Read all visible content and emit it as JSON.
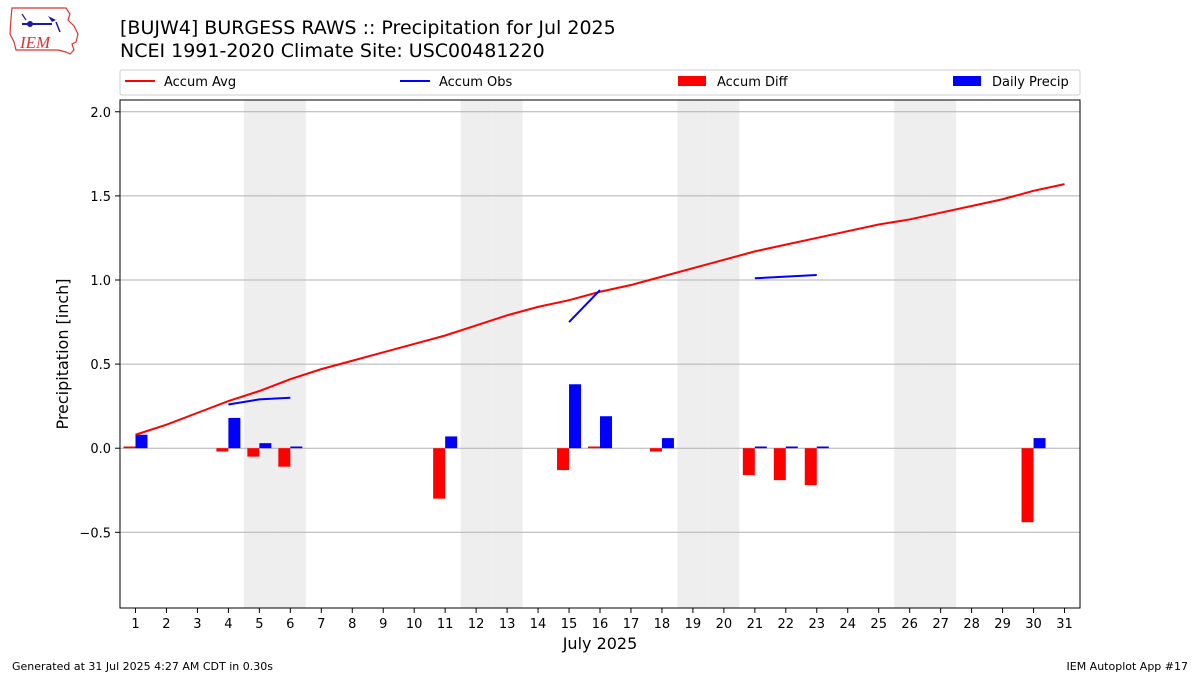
{
  "header": {
    "title_line1": "[BUJW4] BURGESS RAWS :: Precipitation for Jul 2025",
    "title_line2": "NCEI 1991-2020 Climate Site: USC00481220"
  },
  "logo": {
    "text": "IEM",
    "icon": "iowa-state-outline-logo"
  },
  "footer": {
    "left": "Generated at 31 Jul 2025 4:27 AM CDT in 0.30s",
    "right": "IEM Autoplot App #17"
  },
  "colors": {
    "accum_avg": "#ff0000",
    "accum_obs": "#0000ff",
    "accum_diff": "#ff0000",
    "daily_precip": "#0000ff",
    "weekend_shade": "#eeeeee",
    "grid": "#b0b0b0"
  },
  "chart_data": {
    "type": "bar",
    "xlabel": "July 2025",
    "ylabel": "Precipitation [inch]",
    "x": [
      1,
      2,
      3,
      4,
      5,
      6,
      7,
      8,
      9,
      10,
      11,
      12,
      13,
      14,
      15,
      16,
      17,
      18,
      19,
      20,
      21,
      22,
      23,
      24,
      25,
      26,
      27,
      28,
      29,
      30,
      31
    ],
    "xlim": [
      0.5,
      31.5
    ],
    "ylim": [
      -0.95,
      2.07
    ],
    "yticks": [
      -0.5,
      0.0,
      0.5,
      1.0,
      1.5,
      2.0
    ],
    "ytick_labels": [
      "−0.5",
      "0.0",
      "0.5",
      "1.0",
      "1.5",
      "2.0"
    ],
    "grid": "horizontal",
    "legend_position": "top",
    "weekend_days": [
      5,
      6,
      12,
      13,
      19,
      20,
      26,
      27
    ],
    "series": [
      {
        "name": "Accum Avg",
        "kind": "line",
        "color": "#ff0000",
        "values": [
          0.08,
          0.14,
          0.21,
          0.28,
          0.34,
          0.41,
          0.47,
          0.52,
          0.57,
          0.62,
          0.67,
          0.73,
          0.79,
          0.84,
          0.88,
          0.93,
          0.97,
          1.02,
          1.07,
          1.12,
          1.17,
          1.21,
          1.25,
          1.29,
          1.33,
          1.36,
          1.4,
          1.44,
          1.48,
          1.53,
          1.57
        ]
      },
      {
        "name": "Accum Obs",
        "kind": "line",
        "color": "#0000ff",
        "values": [
          null,
          null,
          null,
          0.26,
          0.29,
          0.3,
          null,
          null,
          null,
          null,
          null,
          null,
          null,
          null,
          0.75,
          0.94,
          null,
          null,
          null,
          null,
          1.01,
          1.02,
          1.03,
          null,
          null,
          null,
          null,
          null,
          null,
          null,
          null
        ]
      },
      {
        "name": "Accum Diff",
        "kind": "bar",
        "color": "#ff0000",
        "values": [
          0.01,
          null,
          null,
          -0.02,
          -0.05,
          -0.11,
          null,
          null,
          null,
          null,
          -0.3,
          null,
          null,
          null,
          -0.13,
          0.01,
          null,
          -0.02,
          null,
          null,
          -0.16,
          -0.19,
          -0.22,
          null,
          null,
          null,
          null,
          null,
          null,
          -0.44,
          null
        ]
      },
      {
        "name": "Daily Precip",
        "kind": "bar",
        "color": "#0000ff",
        "values": [
          0.08,
          null,
          null,
          0.18,
          0.03,
          0.01,
          null,
          null,
          null,
          null,
          0.07,
          null,
          null,
          null,
          0.38,
          0.19,
          null,
          0.06,
          null,
          null,
          0.01,
          0.01,
          0.01,
          null,
          null,
          null,
          null,
          null,
          null,
          0.06,
          null
        ]
      }
    ]
  }
}
